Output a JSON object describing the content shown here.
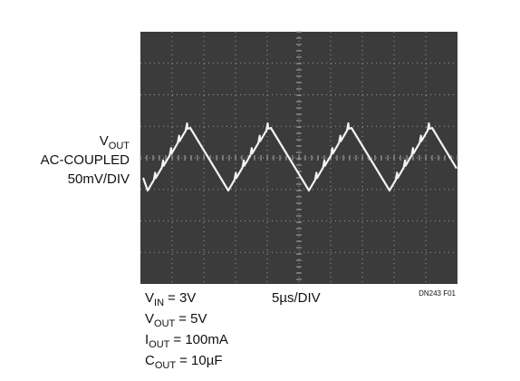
{
  "scope": {
    "y_label": {
      "symbol": "V",
      "subscript": "OUT"
    },
    "coupling": "AC-COUPLED",
    "vertical_scale": "50mV/DIV",
    "horizontal_scale": "5µs/DIV",
    "figure_id": "DN243 F01"
  },
  "conditions": [
    {
      "symbol": "V",
      "subscript": "IN",
      "value": "= 3V"
    },
    {
      "symbol": "V",
      "subscript": "OUT",
      "value": "= 5V"
    },
    {
      "symbol": "I",
      "subscript": "OUT",
      "value": "= 100mA"
    },
    {
      "symbol": "C",
      "subscript": "OUT",
      "value": "= 10µF"
    }
  ]
}
